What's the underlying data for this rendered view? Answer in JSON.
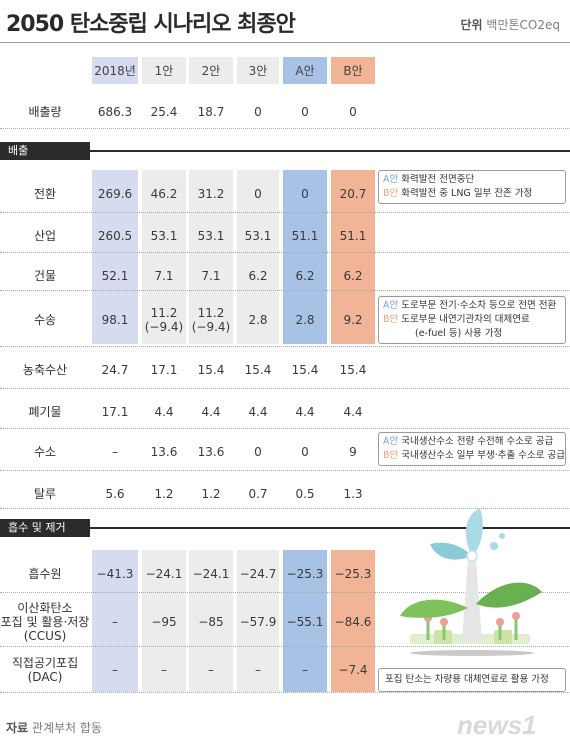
{
  "title": "2050 탄소중립 시나리오 최종안",
  "unit": {
    "label": "단위",
    "value": "백만톤CO2eq"
  },
  "columns": [
    "2018년",
    "1안",
    "2안",
    "3안",
    "A안",
    "B안"
  ],
  "sections": {
    "emission": "배출",
    "absorption": "흡수 및 제거"
  },
  "chart_data": {
    "type": "table",
    "title": "2050 탄소중립 시나리오 최종안",
    "unit": "백만톤CO2eq",
    "columns": [
      "2018년",
      "1안",
      "2안",
      "3안",
      "A안",
      "B안"
    ],
    "rows": [
      {
        "label": [
          "배출량"
        ],
        "values": [
          "686.3",
          "25.4",
          "18.7",
          "0",
          "0",
          "0"
        ]
      },
      {
        "label": [
          "전환"
        ],
        "values": [
          "269.6",
          "46.2",
          "31.2",
          "0",
          "0",
          "20.7"
        ]
      },
      {
        "label": [
          "산업"
        ],
        "values": [
          "260.5",
          "53.1",
          "53.1",
          "53.1",
          "51.1",
          "51.1"
        ]
      },
      {
        "label": [
          "건물"
        ],
        "values": [
          "52.1",
          "7.1",
          "7.1",
          "6.2",
          "6.2",
          "6.2"
        ]
      },
      {
        "label": [
          "수송"
        ],
        "values": [
          "98.1",
          "11.2",
          "11.2",
          "2.8",
          "2.8",
          "9.2"
        ],
        "sub": [
          "",
          "(−9.4)",
          "(−9.4)",
          "",
          "",
          ""
        ]
      },
      {
        "label": [
          "농축수산"
        ],
        "values": [
          "24.7",
          "17.1",
          "15.4",
          "15.4",
          "15.4",
          "15.4"
        ]
      },
      {
        "label": [
          "폐기물"
        ],
        "values": [
          "17.1",
          "4.4",
          "4.4",
          "4.4",
          "4.4",
          "4.4"
        ]
      },
      {
        "label": [
          "수소"
        ],
        "values": [
          "–",
          "13.6",
          "13.6",
          "0",
          "0",
          "9"
        ]
      },
      {
        "label": [
          "탈루"
        ],
        "values": [
          "5.6",
          "1.2",
          "1.2",
          "0.7",
          "0.5",
          "1.3"
        ]
      },
      {
        "label": [
          "흡수원"
        ],
        "values": [
          "−41.3",
          "−24.1",
          "−24.1",
          "−24.7",
          "−25.3",
          "−25.3"
        ]
      },
      {
        "label": [
          "이산화탄소",
          "포집 및 활용·저장",
          "(CCUS)"
        ],
        "values": [
          "–",
          "−95",
          "−85",
          "−57.9",
          "−55.1",
          "−84.6"
        ]
      },
      {
        "label": [
          "직접공기포집",
          "(DAC)"
        ],
        "values": [
          "–",
          "–",
          "–",
          "–",
          "–",
          "−7.4"
        ]
      }
    ]
  },
  "notes": {
    "conversion": [
      {
        "tag": "A안",
        "text": "화력발전 전면중단"
      },
      {
        "tag": "B안",
        "text": "화력발전 중 LNG 일부 잔존 가정"
      }
    ],
    "transport": [
      {
        "tag": "A안",
        "text": "도로부문 전기·수소차 등으로 전면 전환"
      },
      {
        "tag": "B안",
        "text": "도로부문 내연기관차의 대체연료"
      },
      {
        "tag": "",
        "text": "(e-fuel 등) 사용 가정"
      }
    ],
    "hydrogen": [
      {
        "tag": "A안",
        "text": "국내생산수소 전량 수전해 수소로 공급"
      },
      {
        "tag": "B안",
        "text": "국내생산수소 일부 부생·추출 수소로 공급"
      }
    ],
    "dac": [
      {
        "tag": "",
        "text": "포집 탄소는 차량용 대체연료로 활용 가정"
      }
    ]
  },
  "source": {
    "label": "자료",
    "value": "관계부처 합동"
  },
  "logo": {
    "text": "news1"
  },
  "colors": {
    "col2018": "#d6dbef",
    "colA": "#a8c2e6",
    "colB": "#f2b496",
    "neutral": "#ececec",
    "dark": "#2b2b2b"
  }
}
